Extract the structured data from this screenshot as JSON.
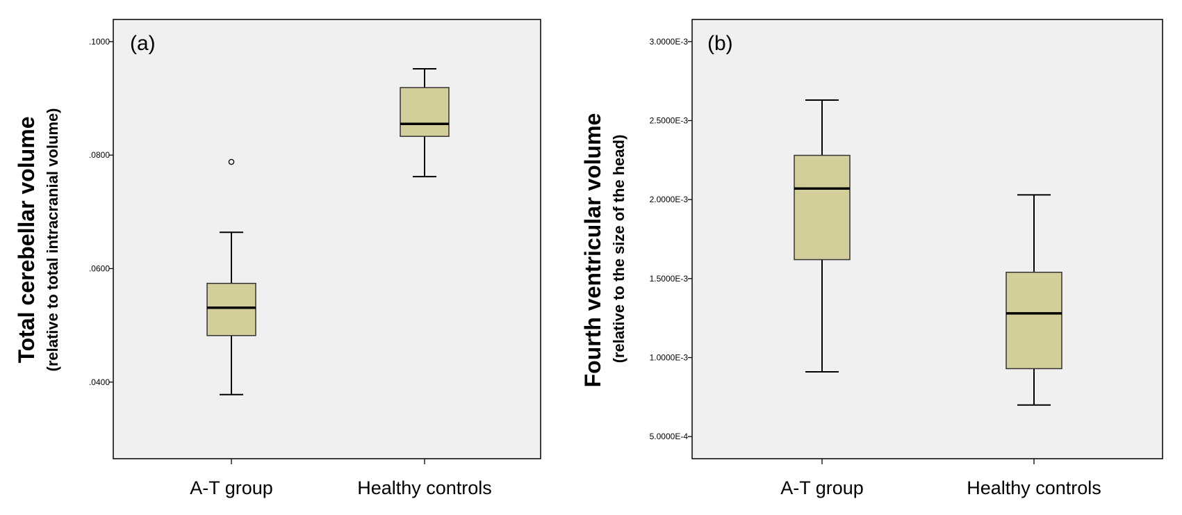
{
  "colors": {
    "plot_background": "#f0f0f0",
    "box_fill": "#d4cf9a",
    "line": "#000000"
  },
  "chart_data": [
    {
      "type": "box",
      "panel_label": "(a)",
      "ylabel": "Total cerebellar volume",
      "ylabel_sub": "(relative to total intracranial volume)",
      "ylim": [
        0.0265,
        0.1039
      ],
      "yticks": [
        0.04,
        0.06,
        0.08,
        0.1
      ],
      "ytick_labels": [
        ".0400",
        ".0600",
        ".0800",
        ".1000"
      ],
      "categories": [
        "A-T group",
        "Healthy controls"
      ],
      "boxes": [
        {
          "name": "A-T group",
          "whisker_low": 0.0378,
          "q1": 0.0482,
          "median": 0.0531,
          "q3": 0.0574,
          "whisker_high": 0.0664,
          "outliers": [
            0.0788
          ]
        },
        {
          "name": "Healthy controls",
          "whisker_low": 0.0762,
          "q1": 0.0833,
          "median": 0.0855,
          "q3": 0.0919,
          "whisker_high": 0.0952,
          "outliers": []
        }
      ]
    },
    {
      "type": "box",
      "panel_label": "(b)",
      "ylabel": "Fourth ventricular volume",
      "ylabel_sub": "(relative to the size of the head)",
      "ylim": [
        0.00036,
        0.00314
      ],
      "yticks": [
        0.0005,
        0.001,
        0.0015,
        0.002,
        0.0025,
        0.003
      ],
      "ytick_labels": [
        "5.0000E-4",
        "1.0000E-3",
        "1.5000E-3",
        "2.0000E-3",
        "2.5000E-3",
        "3.0000E-3"
      ],
      "categories": [
        "A-T group",
        "Healthy controls"
      ],
      "boxes": [
        {
          "name": "A-T group",
          "whisker_low": 0.00091,
          "q1": 0.00162,
          "median": 0.00207,
          "q3": 0.00228,
          "whisker_high": 0.00263,
          "outliers": []
        },
        {
          "name": "Healthy controls",
          "whisker_low": 0.0007,
          "q1": 0.00093,
          "median": 0.00128,
          "q3": 0.00154,
          "whisker_high": 0.00203,
          "outliers": []
        }
      ]
    }
  ]
}
